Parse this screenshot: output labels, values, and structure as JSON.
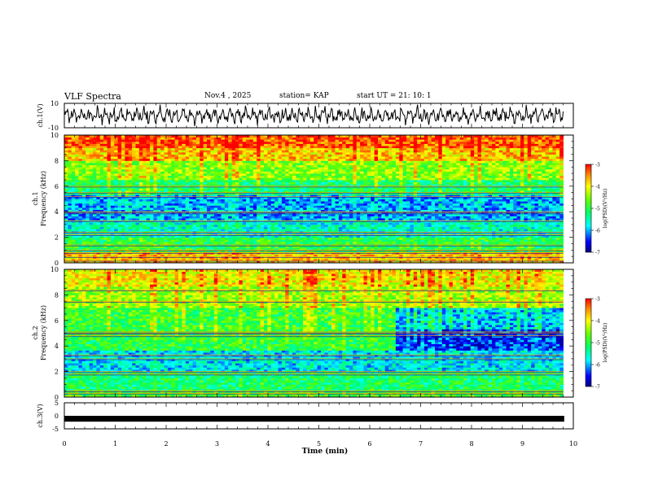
{
  "header": {
    "title": "VLF Spectra",
    "date": "Nov.4 , 2025",
    "station": "station= KAP",
    "start_ut": "start UT =  21: 10: 1"
  },
  "colors": {
    "background": "#ffffff",
    "foreground": "#000000",
    "colormap": [
      "#00008b",
      "#0000ff",
      "#00bfff",
      "#00ffff",
      "#00ff7f",
      "#7fff00",
      "#ffff00",
      "#ff8c00",
      "#ff0000"
    ]
  },
  "chart_data": [
    {
      "type": "line",
      "panel": "ch1-waveform",
      "ylabel": "ch.1(V)",
      "yticks": [
        "10",
        "-10"
      ],
      "ylim": [
        -10,
        10
      ],
      "xlim": [
        0,
        10
      ],
      "description_values": "continuous noisy waveform oscillating roughly between -8 and 8 V across 0-9.8 min"
    },
    {
      "type": "heatmap",
      "panel": "ch1-spectrogram",
      "ylabel_top": "ch.1",
      "ylabel": "Frequency (kHz)",
      "yticks": [
        "0",
        "2",
        "4",
        "6",
        "8",
        "10"
      ],
      "ylim": [
        0,
        10
      ],
      "xlim": [
        0,
        10
      ],
      "data_xmax": 9.8,
      "colorbar": {
        "label": "log(PSD)(V²/Hz)",
        "ticks": [
          "-3",
          "-4",
          "-5",
          "-6",
          "-7"
        ],
        "range": [
          -7,
          -3
        ]
      },
      "bands_khz": [
        {
          "from": 0,
          "to": 0.8,
          "level": -3.8
        },
        {
          "from": 0.8,
          "to": 2.0,
          "level": -5.0
        },
        {
          "from": 2.0,
          "to": 3.2,
          "level": -5.6
        },
        {
          "from": 3.2,
          "to": 5.3,
          "level": -6.0
        },
        {
          "from": 5.3,
          "to": 6.5,
          "level": -5.2
        },
        {
          "from": 6.5,
          "to": 8.0,
          "level": -4.5
        },
        {
          "from": 8.0,
          "to": 9.0,
          "level": -3.8
        },
        {
          "from": 9.0,
          "to": 10.0,
          "level": -3.3
        }
      ],
      "lines_khz": [
        0.2,
        0.5,
        0.8,
        1.0,
        1.4,
        2.2,
        2.4,
        3.3,
        3.9,
        4.0,
        5.2,
        5.5,
        6.0
      ]
    },
    {
      "type": "heatmap",
      "panel": "ch2-spectrogram",
      "ylabel_top": "ch.2",
      "ylabel": "Frequency (kHz)",
      "yticks": [
        "0",
        "2",
        "4",
        "6",
        "8",
        "10"
      ],
      "ylim": [
        0,
        10
      ],
      "xlim": [
        0,
        10
      ],
      "data_xmax": 9.8,
      "change_at_min": 6.45,
      "colorbar": {
        "label": "log(PSD)(V²/Hz)",
        "ticks": [
          "-3",
          "-4",
          "-5",
          "-6",
          "-7"
        ],
        "range": [
          -7,
          -3
        ]
      },
      "bands_khz": [
        {
          "from": 0,
          "to": 0.4,
          "level": -4.8
        },
        {
          "from": 0.4,
          "to": 2.0,
          "level": -5.2
        },
        {
          "from": 2.0,
          "to": 3.6,
          "level": -5.8
        },
        {
          "from": 3.6,
          "to": 5.3,
          "level": -5.0
        },
        {
          "from": 5.3,
          "to": 7.0,
          "level": -4.9
        },
        {
          "from": 7.0,
          "to": 8.6,
          "level": -4.4
        },
        {
          "from": 8.6,
          "to": 10.0,
          "level": -4.0
        }
      ],
      "bands_after_change_khz": [
        {
          "from": 3.6,
          "to": 5.3,
          "level": -6.4
        },
        {
          "from": 5.3,
          "to": 7.0,
          "level": -5.9
        }
      ],
      "lines_khz": [
        0.3,
        0.5,
        1.8,
        2.0,
        3.0,
        3.3,
        4.8,
        5.0,
        5.1,
        7.5,
        8.4
      ]
    },
    {
      "type": "line",
      "panel": "ch3-waveform",
      "ylabel": "ch.3(V)",
      "yticks": [
        "5",
        "0",
        "-5"
      ],
      "ylim": [
        -5,
        5
      ],
      "xlim": [
        0,
        10
      ],
      "xlabel": "Time (min)",
      "xticks": [
        "0",
        "1",
        "2",
        "3",
        "4",
        "5",
        "6",
        "7",
        "8",
        "9",
        "10"
      ],
      "level_band": [
        -1.0,
        0.0
      ]
    }
  ]
}
